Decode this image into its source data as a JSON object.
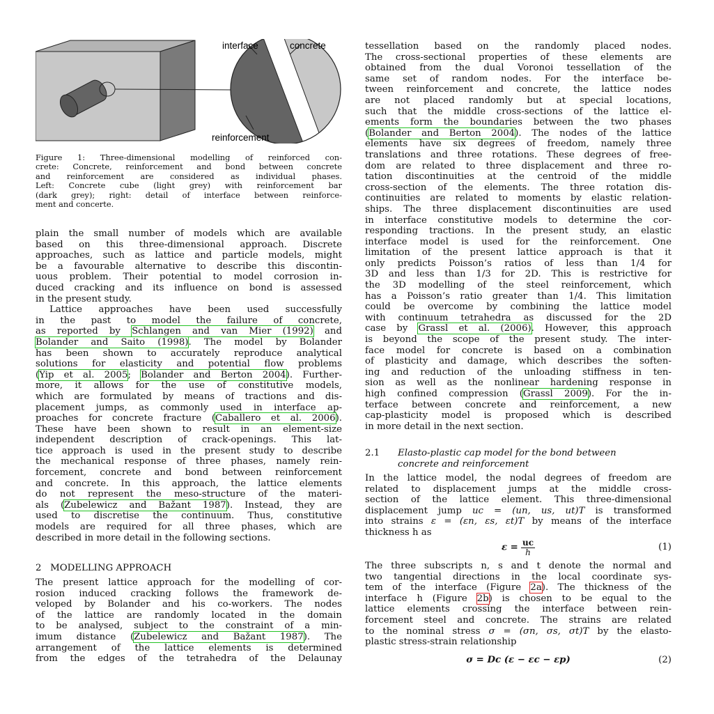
{
  "figure": {
    "labels": {
      "interface": "interface",
      "concrete": "concrete",
      "reinforcement": "reinforcement"
    },
    "caption": [
      "Figure 1: Three-dimensional modelling of reinforced con-",
      "crete: Concrete, reinforcement and bond between concrete",
      "and reinforcement are considered as individual phases.",
      "Left: Concrete cube (light grey) with reinforcement bar",
      "(dark grey); right: detail of interface between reinforce-",
      "ment and concerte."
    ],
    "colors": {
      "light_grey": "#c8c8c8",
      "dark_grey": "#646464",
      "side_grey": "#7a7a7a",
      "top_grey": "#b4b4b4"
    }
  },
  "left": {
    "p1": [
      "plain the small number of models which are available",
      "based on this three-dimensional approach. Discrete",
      "approaches, such as lattice and particle models, might",
      "be a favourable alternative to describe this discontin-",
      "uous problem. Their potential to model corrosion in-",
      "duced cracking and its influence on bond is assessed",
      "in the present study."
    ],
    "p2": {
      "l1": "Lattice approaches have been used successfully",
      "l2": "in the past to model the failure of concrete,",
      "l3a": "as reported by ",
      "l3cite": "Schlangen and van Mier (1992)",
      "l3b": " and",
      "l4cite": "Bolander and Saito (1998)",
      "l4b": ". The model by Bolander",
      "l5": "has been shown to accurately reproduce analytical",
      "l6": "solutions for elasticity and potential flow problems",
      "l7a": "(",
      "l7cite1": "Yip et al. 2005",
      "l7sep": "; ",
      "l7cite2": "Bolander and Berton 2004",
      "l7b": "). Further-",
      "l8": "more, it allows for the use of constitutive models,",
      "l9": "which are formulated by means of tractions and dis-",
      "l10": "placement jumps, as commonly used in interface ap-",
      "l11a": "proaches for concrete fracture (",
      "l11cite": "Caballero et al. 2006",
      "l11b": ").",
      "l12": "These have been shown to result in an element-size",
      "l13": "independent description of crack-openings. This lat-",
      "l14": "tice approach is used in the present study to describe",
      "l15": "the mechanical response of three phases, namely rein-",
      "l16": "forcement, concrete and bond between reinforcement",
      "l17": "and concrete. In this approach, the lattice elements",
      "l18": "do not represent the meso-structure of the materi-",
      "l19a": "als (",
      "l19cite": "Zubelewicz and Bažant 1987",
      "l19b": "). Instead, they are",
      "l20": "used to discretise the continuum. Thus, constitutive",
      "l21": "models are required for all three phases, which are",
      "l22": "described in more detail in the following sections."
    },
    "section_heading": "2   MODELLING APPROACH",
    "p3": {
      "l1": "The present lattice approach for the modelling of cor-",
      "l2": "rosion induced cracking follows the framework de-",
      "l3": "veloped by Bolander and his co-workers. The nodes",
      "l4": "of the lattice are randomly located in the domain",
      "l5": "to be analysed, subject to the constraint of a min-",
      "l6a": "imum distance (",
      "l6cite": "Zubelewicz and Bažant 1987",
      "l6b": "). The",
      "l7": "arrangement of the lattice elements is determined",
      "l8": "from the edges of the tetrahedra of the Delaunay"
    }
  },
  "right": {
    "p1": {
      "l1": "tessellation based on the randomly placed nodes.",
      "l2": "The cross-sectional properties of these elements are",
      "l3": "obtained from the dual Voronoi tessellation of the",
      "l4": "same set of random nodes. For the interface be-",
      "l5": "tween reinforcement and concrete, the lattice nodes",
      "l6": "are not placed randomly but at special locations,",
      "l7": "such that the middle cross-sections of the lattice el-",
      "l8": "ements form the boundaries between the two phases",
      "l9a": "(",
      "l9cite": "Bolander and Berton 2004",
      "l9b": "). The nodes of the lattice",
      "l10": "elements have six degrees of freedom, namely three",
      "l11": "translations and three rotations. These degrees of free-",
      "l12": "dom are related to three displacement and three ro-",
      "l13": "tation discontinuities at the centroid of the middle",
      "l14": "cross-section of the elements. The three rotation dis-",
      "l15": "continuities are related to moments by elastic relation-",
      "l16": "ships. The three displacement discontinuities are used",
      "l17": "in interface constitutive models to determine the cor-",
      "l18": "responding tractions. In the present study, an elastic",
      "l19": "interface model is used for the reinforcement. One",
      "l20": "limitation of the present lattice approach is that it",
      "l21": "only predicts Poisson’s ratios of less than 1/4 for",
      "l22": "3D and less than 1/3 for 2D. This is restrictive for",
      "l23": "the 3D modelling of the steel reinforcement, which",
      "l24": "has a Poisson’s ratio greater than 1/4. This limitation",
      "l25": "could be overcome by combining the lattice model",
      "l26": "with continuum tetrahedra as discussed for the 2D",
      "l27a": "case by ",
      "l27cite": "Grassl et al. (2006)",
      "l27b": ". However, this approach",
      "l28": "is beyond the scope of the present study. The inter-",
      "l29": "face model for concrete is based on a combination",
      "l30": "of plasticity and damage, which describes the soften-",
      "l31": "ing and reduction of the unloading stiffness in ten-",
      "l32": "sion as well as the nonlinear hardening response in",
      "l33a": "high confined compression (",
      "l33cite": "Grassl 2009",
      "l33b": "). For the in-",
      "l34": "terface between concrete and reinforcement, a new",
      "l35": "cap-plasticity model is proposed which is described",
      "l36": "in more detail in the next section."
    },
    "subsection_number": "2.1",
    "subsection_title_1": "Elasto-plastic cap model for the bond between",
    "subsection_title_2": "concrete and reinforcement",
    "p2": {
      "l1": "In the lattice model, the nodal degrees of freedom are",
      "l2": "related to displacement jumps at the middle cross-",
      "l3": "section of the lattice element. This three-dimensional",
      "l4a": "displacement jump ",
      "l4math": "uc = (un, us, ut)T",
      "l4b": " is transformed",
      "l5a": "into strains ",
      "l5math": "ε = (εn, εs, εt)T",
      "l5b": " by means of the interface",
      "l6": "thickness h as"
    },
    "eq1": {
      "lhs": "ε =",
      "num": "uc",
      "den": "h",
      "number": "(1)"
    },
    "p3": {
      "l1": "The three subscripts n, s and t denote the normal and",
      "l2": "two tangential directions in the local coordinate sys-",
      "l3a": "tem of the interface (Figure ",
      "l3ref": "2a",
      "l3b": "). The thickness of the",
      "l4a": "interface h (Figure ",
      "l4ref": "2b",
      "l4b": ") is chosen to be equal to the",
      "l5": "lattice elements crossing the interface between rein-",
      "l6": "forcement steel and concrete. The strains are related",
      "l7a": "to the nominal stress ",
      "l7math": "σ = (σn, σs, σt)T",
      "l7b": " by the elasto-",
      "l8": "plastic stress-strain relationship"
    },
    "eq2": {
      "body": "σ = Dc (ε − εc − εp)",
      "number": "(2)"
    }
  }
}
